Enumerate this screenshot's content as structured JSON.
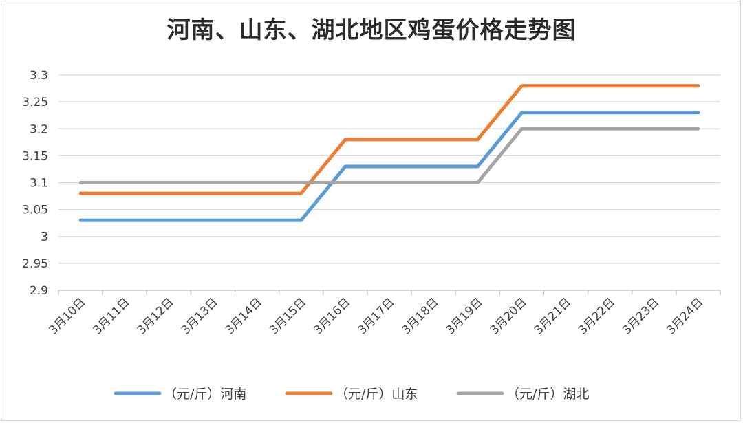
{
  "chart_data": {
    "type": "line",
    "title": "河南、山东、湖北地区鸡蛋价格走势图",
    "x": [
      "3月10日",
      "3月11日",
      "3月12日",
      "3月13日",
      "3月14日",
      "3月15日",
      "3月16日",
      "3月17日",
      "3月18日",
      "3月19日",
      "3月20日",
      "3月21日",
      "3月22日",
      "3月23日",
      "3月24日"
    ],
    "series": [
      {
        "name": "（元/斤）河南",
        "color": "#5b9bd5",
        "values": [
          3.03,
          3.03,
          3.03,
          3.03,
          3.03,
          3.03,
          3.13,
          3.13,
          3.13,
          3.13,
          3.23,
          3.23,
          3.23,
          3.23,
          3.23
        ]
      },
      {
        "name": "（元/斤）山东",
        "color": "#ed7d31",
        "values": [
          3.08,
          3.08,
          3.08,
          3.08,
          3.08,
          3.08,
          3.18,
          3.18,
          3.18,
          3.18,
          3.28,
          3.28,
          3.28,
          3.28,
          3.28
        ]
      },
      {
        "name": "（元/斤）湖北",
        "color": "#a5a5a5",
        "values": [
          3.1,
          3.1,
          3.1,
          3.1,
          3.1,
          3.1,
          3.1,
          3.1,
          3.1,
          3.1,
          3.2,
          3.2,
          3.2,
          3.2,
          3.2
        ]
      }
    ],
    "yticks": [
      "3.3",
      "3.25",
      "3.2",
      "3.15",
      "3.1",
      "3.05",
      "3",
      "2.95",
      "2.9"
    ],
    "ylim": [
      2.9,
      3.3
    ],
    "grid": true,
    "legend_position": "bottom",
    "xlabel": "",
    "ylabel": ""
  }
}
